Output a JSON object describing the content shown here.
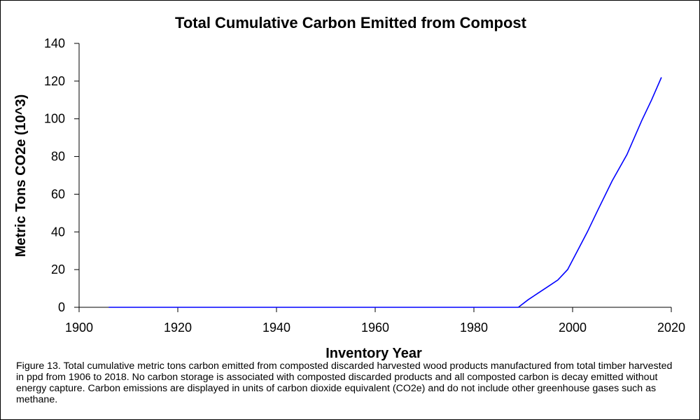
{
  "chart_data": {
    "type": "line",
    "title": "Total Cumulative Carbon Emitted from Compost",
    "xlabel": "Inventory Year",
    "ylabel": "Metric Tons CO2e (10^3)",
    "xlim": [
      1900,
      2020
    ],
    "ylim": [
      0,
      140
    ],
    "xticks": [
      1900,
      1920,
      1940,
      1960,
      1980,
      2000,
      2020
    ],
    "yticks": [
      0,
      20,
      40,
      60,
      80,
      100,
      120,
      140
    ],
    "grid": false,
    "legend": "none",
    "series": [
      {
        "color": "#0000ff",
        "x": [
          1906,
          1950,
          1989,
          1991,
          1993,
          1995,
          1997,
          1999,
          2001,
          2003,
          2005,
          2008,
          2011,
          2014,
          2016,
          2018
        ],
        "y": [
          0,
          0,
          0,
          4,
          7.5,
          11,
          14.5,
          20,
          30,
          40,
          51,
          67,
          81,
          99,
          110,
          122
        ]
      }
    ]
  },
  "caption": "Figure 13. Total cumulative metric tons carbon emitted from composted discarded harvested wood products manufactured from total timber harvested in ppd from 1906 to 2018. No carbon storage is associated with composted discarded products and all composted carbon is decay emitted without energy capture. Carbon emissions are displayed in units of carbon dioxide equivalent (CO2e) and do not include other greenhouse gases such as methane."
}
